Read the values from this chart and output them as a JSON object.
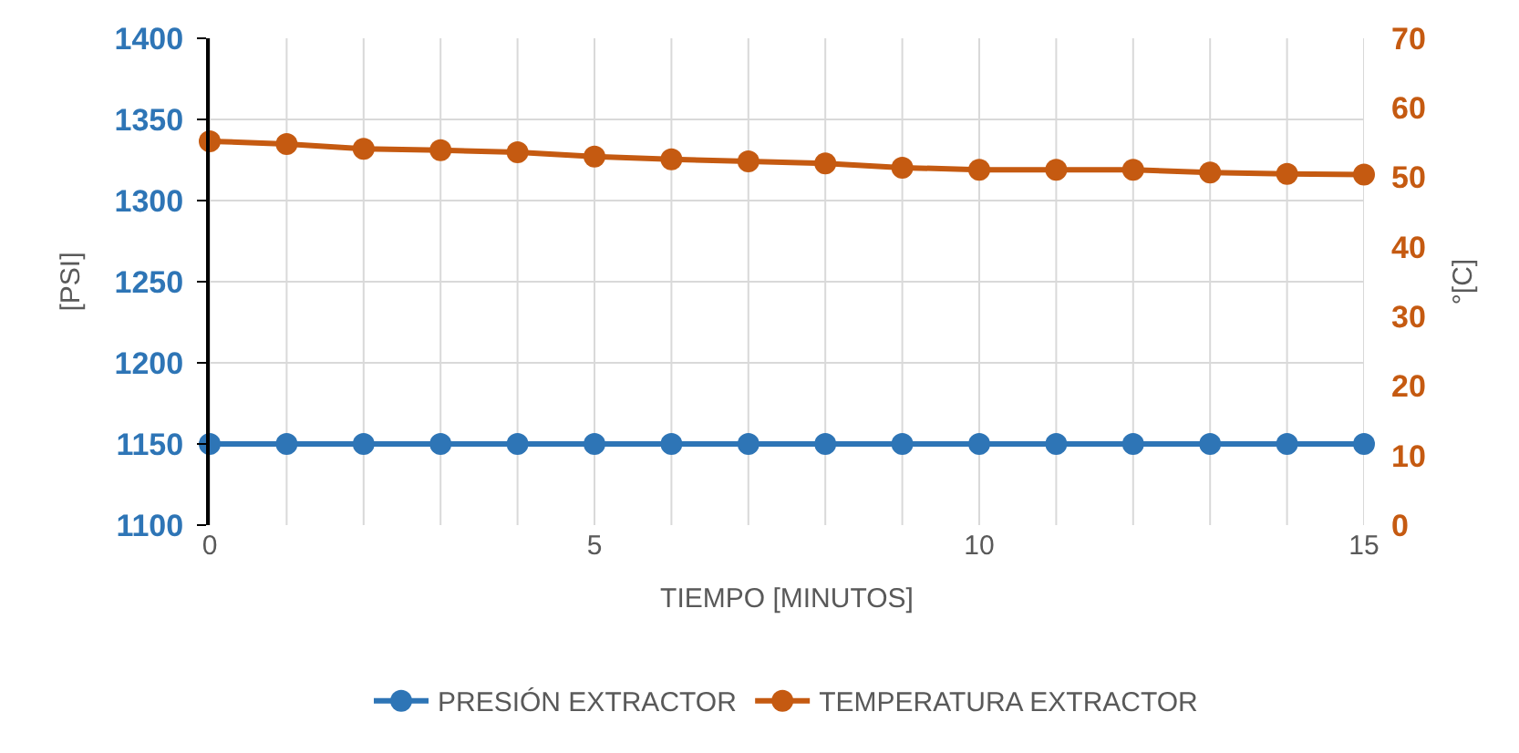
{
  "chart_data": {
    "type": "line",
    "xlabel": "TIEMPO [MINUTOS]",
    "ylabel": "[PSI]",
    "y2label": "°[C]",
    "x": [
      0,
      1,
      2,
      3,
      4,
      5,
      6,
      7,
      8,
      9,
      10,
      11,
      12,
      13,
      14,
      15
    ],
    "series": [
      {
        "name": "PRESIÓN EXTRACTOR",
        "color": "#2e75b6",
        "values": [
          1150,
          1150,
          1150,
          1150,
          1150,
          1150,
          1150,
          1150,
          1150,
          1150,
          1150,
          1150,
          1150,
          1150,
          1150,
          1150
        ]
      },
      {
        "name": "TEMPERATURA EXTRACTOR",
        "color": "#c55a11",
        "axis": "y2",
        "values": [
          55.2,
          54.8,
          54.1,
          53.9,
          53.6,
          53.0,
          52.6,
          52.3,
          52.0,
          51.4,
          51.1,
          51.1,
          51.1,
          50.7,
          50.5,
          50.4
        ]
      }
    ],
    "xlim": [
      0,
      15
    ],
    "xticks": [
      0,
      5,
      10,
      15
    ],
    "ylim": [
      1100,
      1400
    ],
    "yticks": [
      1100,
      1150,
      1200,
      1250,
      1300,
      1350,
      1400
    ],
    "y2lim": [
      0,
      70
    ],
    "y2ticks": [
      0,
      10,
      20,
      30,
      40,
      50,
      60,
      70
    ],
    "grid": true,
    "legend": "bottom",
    "marker": "circle",
    "line_style": "solid"
  }
}
